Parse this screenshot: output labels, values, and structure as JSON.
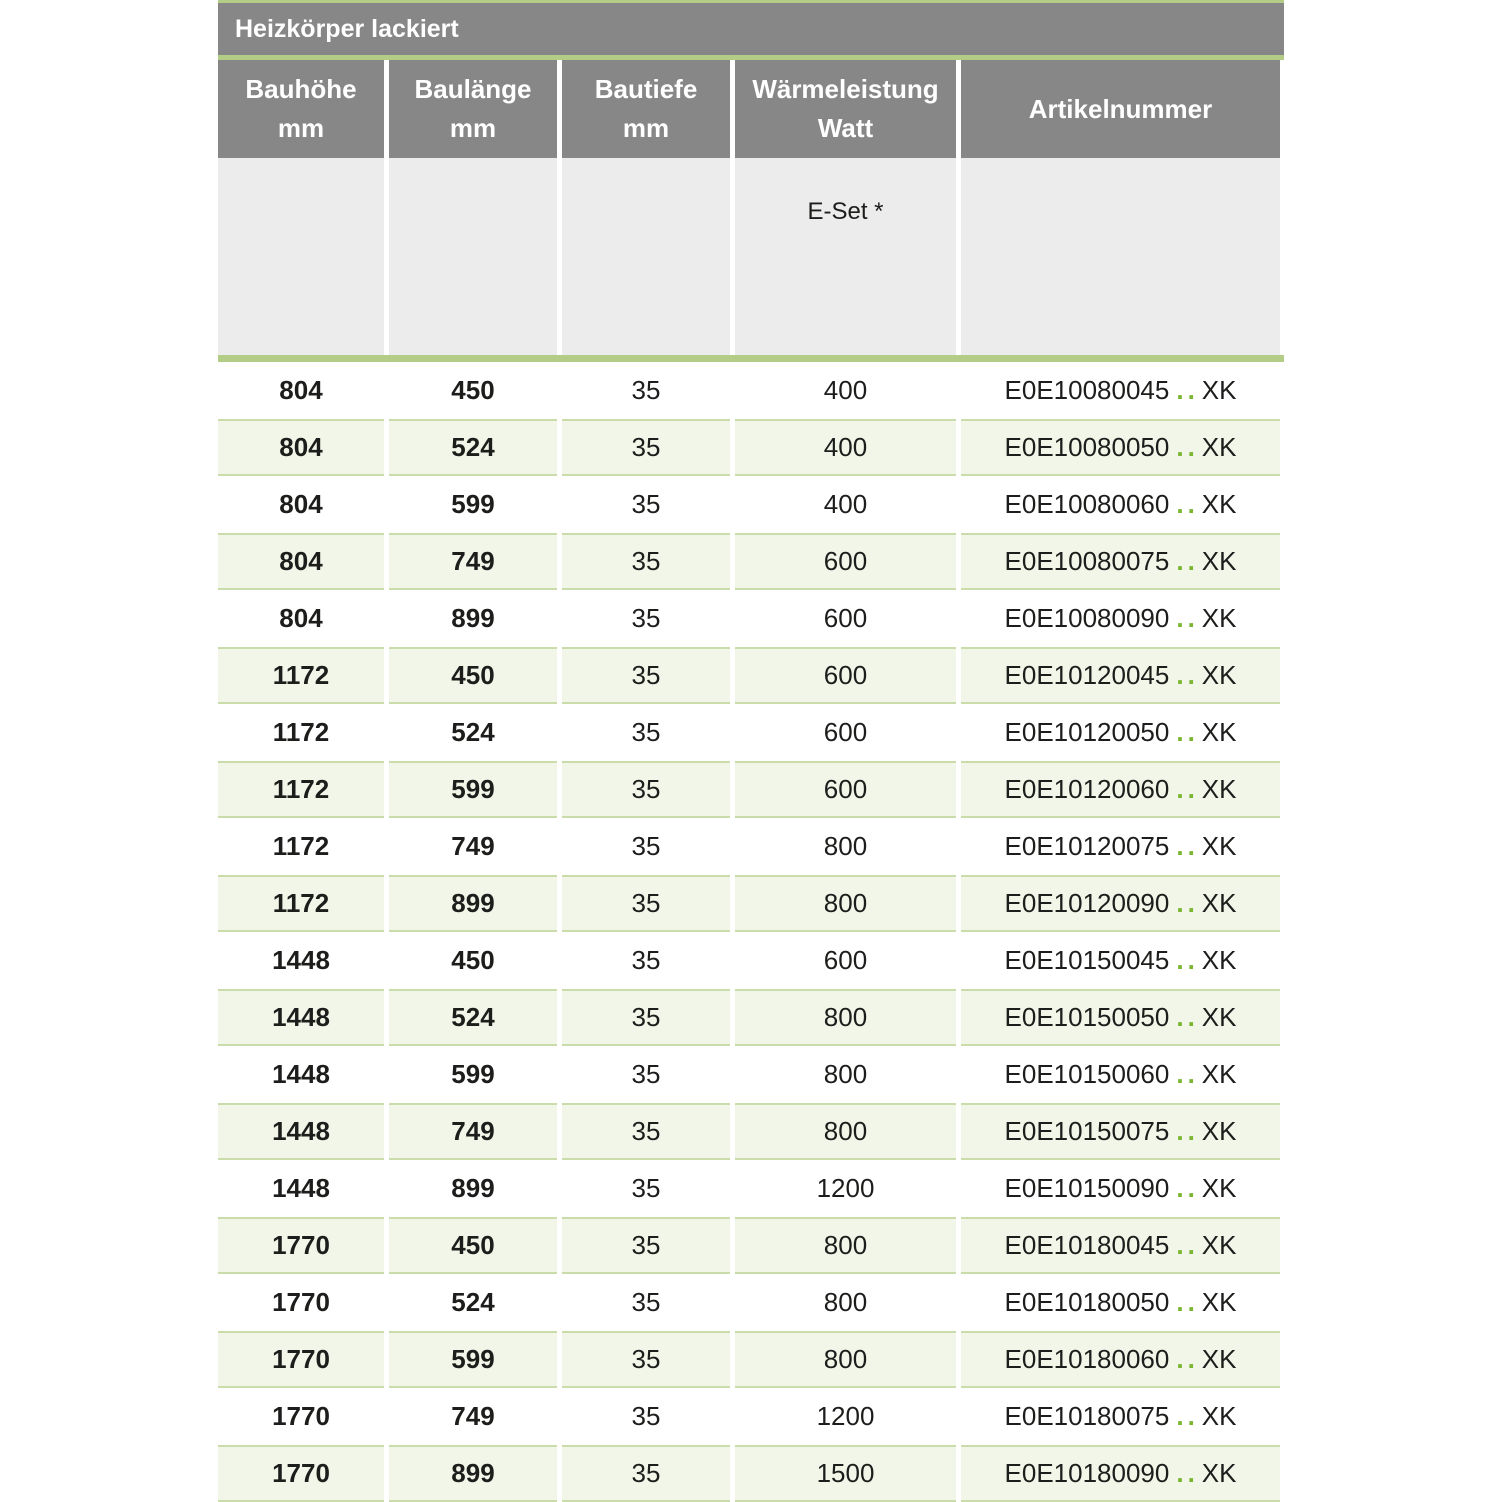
{
  "table": {
    "title": "Heizkörper lackiert",
    "columns": [
      {
        "line1": "Bauhöhe",
        "line2": "mm"
      },
      {
        "line1": "Baulänge",
        "line2": "mm"
      },
      {
        "line1": "Bautiefe",
        "line2": "mm"
      },
      {
        "line1": "Wärmeleistung",
        "line2": "Watt"
      },
      {
        "line1": "Artikelnummer",
        "line2": ""
      }
    ],
    "subheader": {
      "eset_label": "E-Set *"
    },
    "rows": [
      {
        "bauhoehe": "804",
        "baulaenge": "450",
        "bautiefe": "35",
        "waermeleistung": "400",
        "artikel_prefix": "E0E10080045",
        "artikel_dots": "..",
        "artikel_suffix": "XK"
      },
      {
        "bauhoehe": "804",
        "baulaenge": "524",
        "bautiefe": "35",
        "waermeleistung": "400",
        "artikel_prefix": "E0E10080050",
        "artikel_dots": "..",
        "artikel_suffix": "XK"
      },
      {
        "bauhoehe": "804",
        "baulaenge": "599",
        "bautiefe": "35",
        "waermeleistung": "400",
        "artikel_prefix": "E0E10080060",
        "artikel_dots": "..",
        "artikel_suffix": "XK"
      },
      {
        "bauhoehe": "804",
        "baulaenge": "749",
        "bautiefe": "35",
        "waermeleistung": "600",
        "artikel_prefix": "E0E10080075",
        "artikel_dots": "..",
        "artikel_suffix": "XK"
      },
      {
        "bauhoehe": "804",
        "baulaenge": "899",
        "bautiefe": "35",
        "waermeleistung": "600",
        "artikel_prefix": "E0E10080090",
        "artikel_dots": "..",
        "artikel_suffix": "XK"
      },
      {
        "bauhoehe": "1172",
        "baulaenge": "450",
        "bautiefe": "35",
        "waermeleistung": "600",
        "artikel_prefix": "E0E10120045",
        "artikel_dots": "..",
        "artikel_suffix": "XK"
      },
      {
        "bauhoehe": "1172",
        "baulaenge": "524",
        "bautiefe": "35",
        "waermeleistung": "600",
        "artikel_prefix": "E0E10120050",
        "artikel_dots": "..",
        "artikel_suffix": "XK"
      },
      {
        "bauhoehe": "1172",
        "baulaenge": "599",
        "bautiefe": "35",
        "waermeleistung": "600",
        "artikel_prefix": "E0E10120060",
        "artikel_dots": "..",
        "artikel_suffix": "XK"
      },
      {
        "bauhoehe": "1172",
        "baulaenge": "749",
        "bautiefe": "35",
        "waermeleistung": "800",
        "artikel_prefix": "E0E10120075",
        "artikel_dots": "..",
        "artikel_suffix": "XK"
      },
      {
        "bauhoehe": "1172",
        "baulaenge": "899",
        "bautiefe": "35",
        "waermeleistung": "800",
        "artikel_prefix": "E0E10120090",
        "artikel_dots": "..",
        "artikel_suffix": "XK"
      },
      {
        "bauhoehe": "1448",
        "baulaenge": "450",
        "bautiefe": "35",
        "waermeleistung": "600",
        "artikel_prefix": "E0E10150045",
        "artikel_dots": "..",
        "artikel_suffix": "XK"
      },
      {
        "bauhoehe": "1448",
        "baulaenge": "524",
        "bautiefe": "35",
        "waermeleistung": "800",
        "artikel_prefix": "E0E10150050",
        "artikel_dots": "..",
        "artikel_suffix": "XK"
      },
      {
        "bauhoehe": "1448",
        "baulaenge": "599",
        "bautiefe": "35",
        "waermeleistung": "800",
        "artikel_prefix": "E0E10150060",
        "artikel_dots": "..",
        "artikel_suffix": "XK"
      },
      {
        "bauhoehe": "1448",
        "baulaenge": "749",
        "bautiefe": "35",
        "waermeleistung": "800",
        "artikel_prefix": "E0E10150075",
        "artikel_dots": "..",
        "artikel_suffix": "XK"
      },
      {
        "bauhoehe": "1448",
        "baulaenge": "899",
        "bautiefe": "35",
        "waermeleistung": "1200",
        "artikel_prefix": "E0E10150090",
        "artikel_dots": "..",
        "artikel_suffix": "XK"
      },
      {
        "bauhoehe": "1770",
        "baulaenge": "450",
        "bautiefe": "35",
        "waermeleistung": "800",
        "artikel_prefix": "E0E10180045",
        "artikel_dots": "..",
        "artikel_suffix": "XK"
      },
      {
        "bauhoehe": "1770",
        "baulaenge": "524",
        "bautiefe": "35",
        "waermeleistung": "800",
        "artikel_prefix": "E0E10180050",
        "artikel_dots": "..",
        "artikel_suffix": "XK"
      },
      {
        "bauhoehe": "1770",
        "baulaenge": "599",
        "bautiefe": "35",
        "waermeleistung": "800",
        "artikel_prefix": "E0E10180060",
        "artikel_dots": "..",
        "artikel_suffix": "XK"
      },
      {
        "bauhoehe": "1770",
        "baulaenge": "749",
        "bautiefe": "35",
        "waermeleistung": "1200",
        "artikel_prefix": "E0E10180075",
        "artikel_dots": "..",
        "artikel_suffix": "XK"
      },
      {
        "bauhoehe": "1770",
        "baulaenge": "899",
        "bautiefe": "35",
        "waermeleistung": "1500",
        "artikel_prefix": "E0E10180090",
        "artikel_dots": "..",
        "artikel_suffix": "XK"
      }
    ]
  },
  "colors": {
    "header_gray": "#878787",
    "accent_green": "#b3cd87",
    "subheader_gray": "#ececec",
    "row_green": "#f1f6e9",
    "row_border_green": "#c9dcaa",
    "dot_green": "#79b52f",
    "text_dark": "#1d1d1b"
  }
}
